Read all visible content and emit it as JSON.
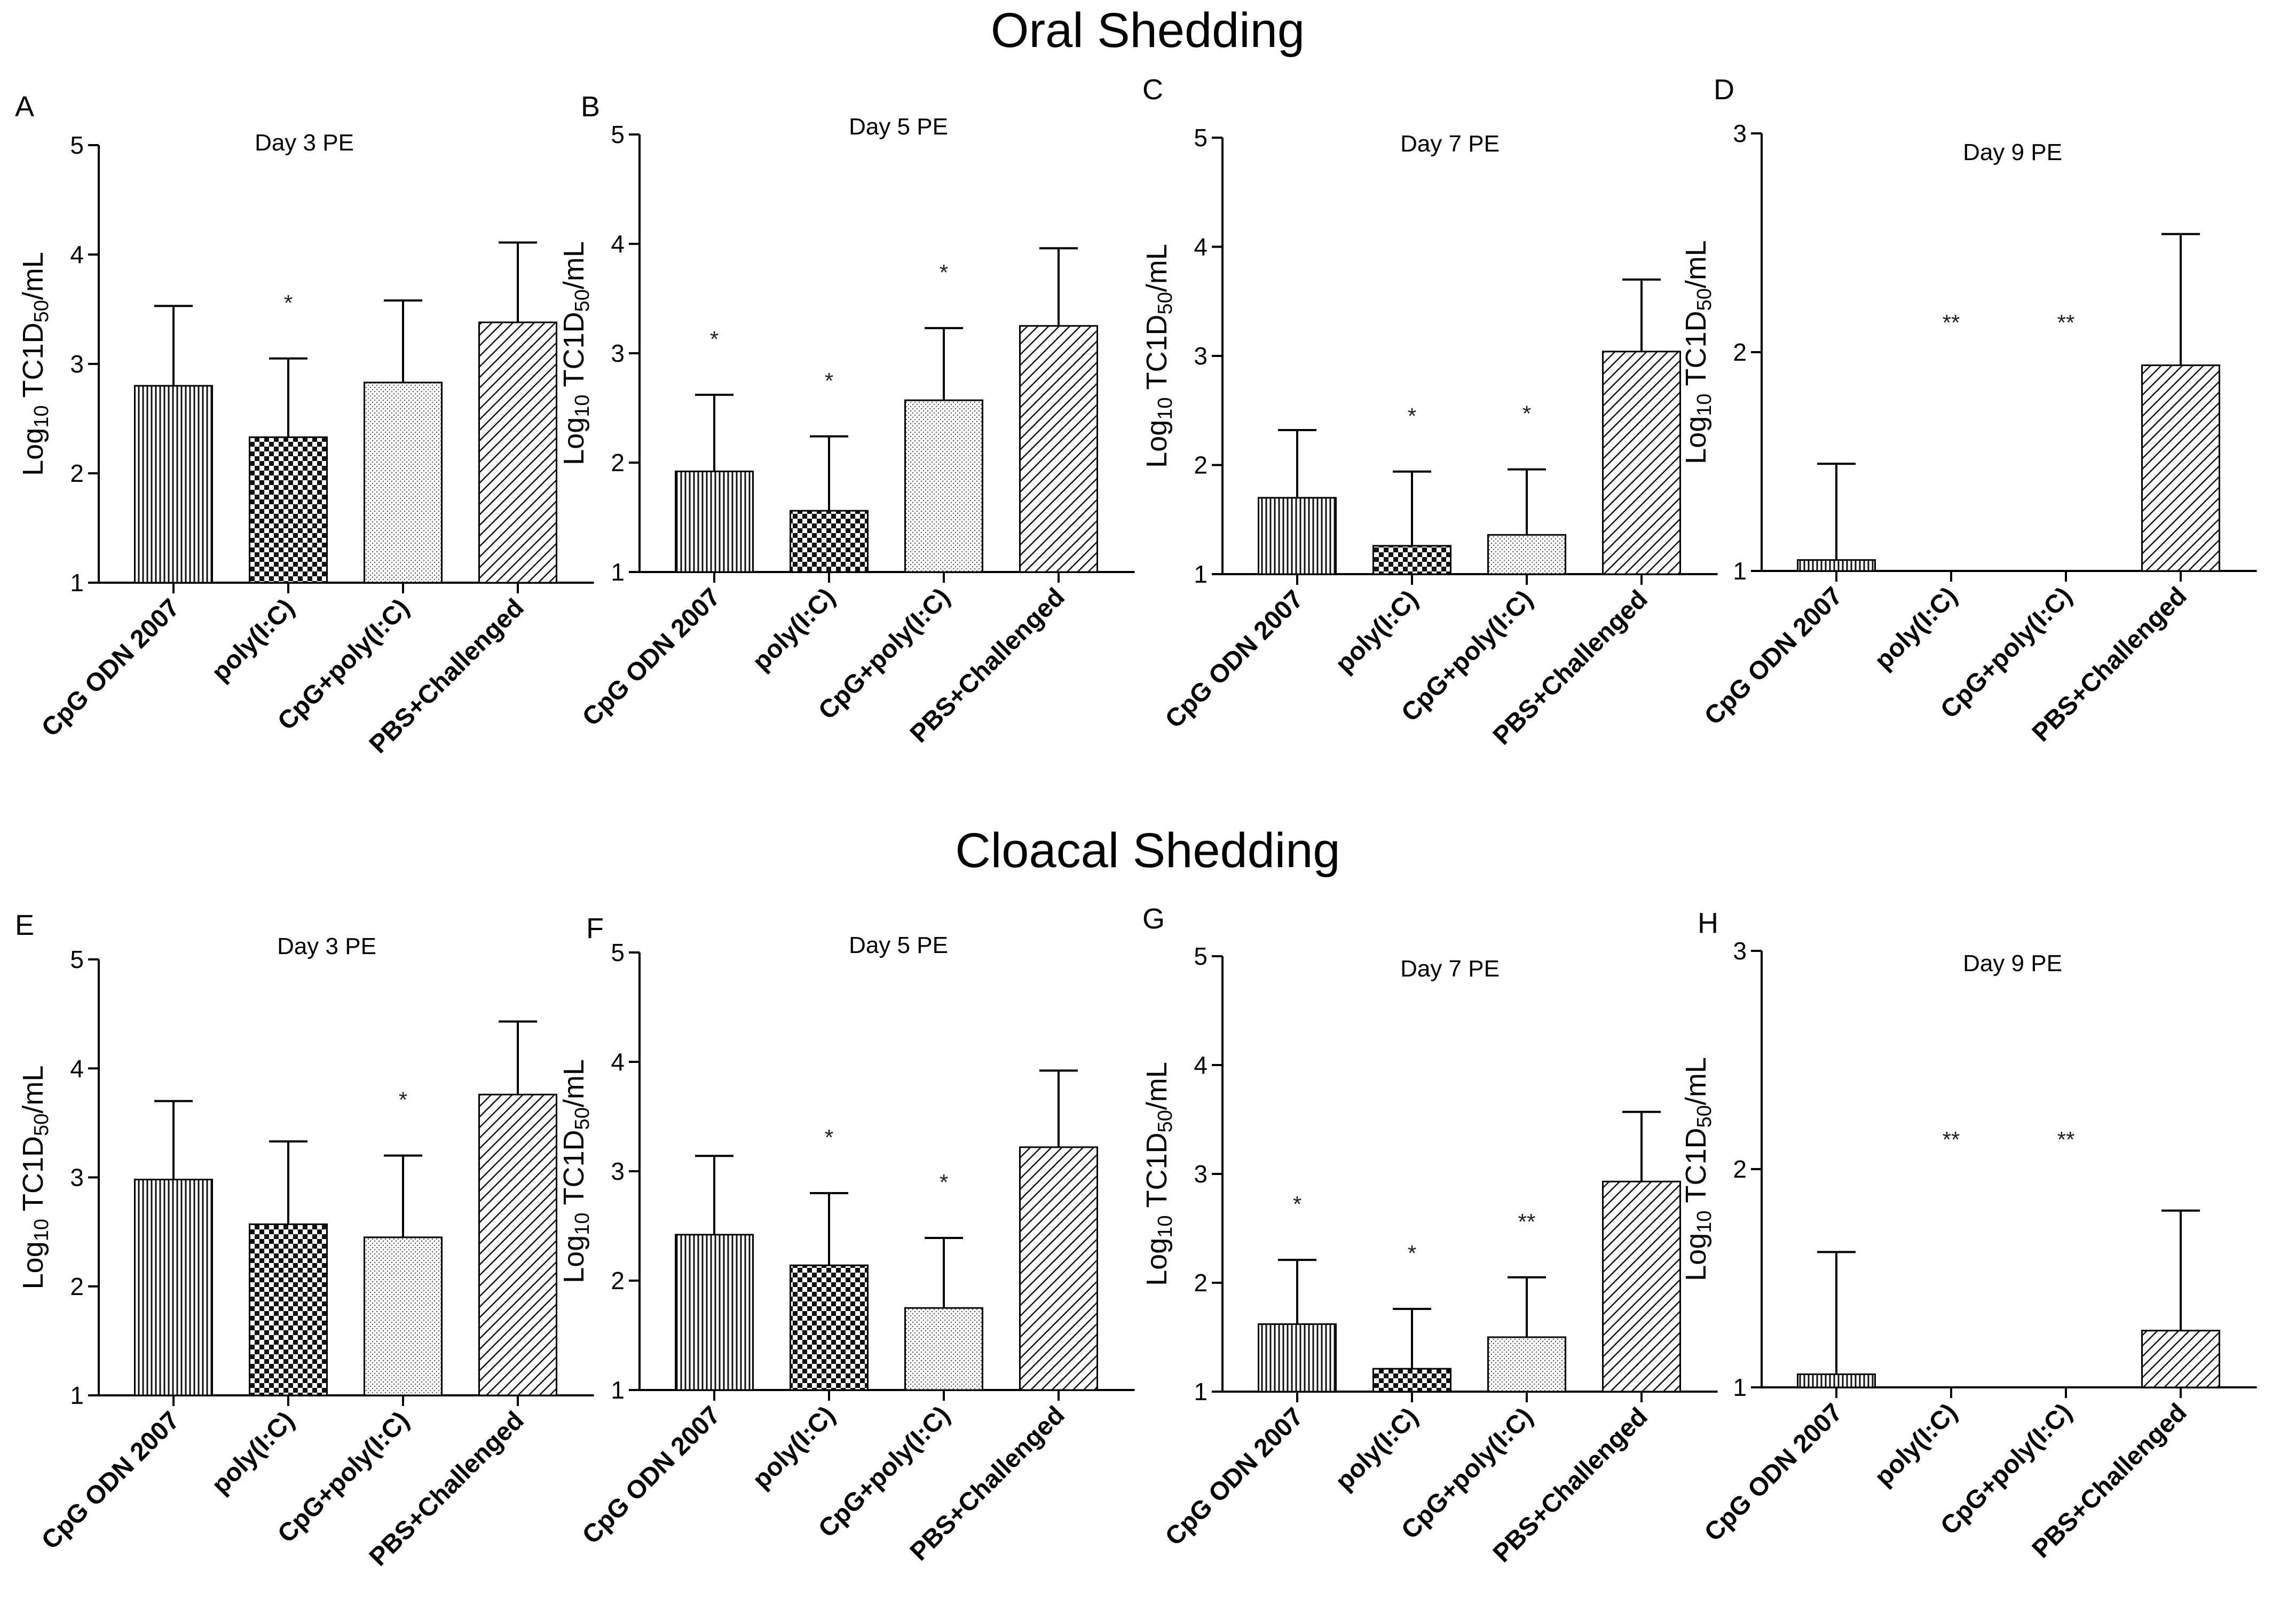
{
  "titles": {
    "oral": "Oral Shedding",
    "cloacal": "Cloacal Shedding"
  },
  "y_axis_label": {
    "prefix": "Log",
    "sub1": "10",
    "mid": " TC1D",
    "sub2": "50",
    "suffix": "/mL"
  },
  "chart_data": [
    {
      "letter": "A",
      "type": "bar",
      "title": "Day 3 PE",
      "ylim": [
        1,
        5
      ],
      "yticks": [
        1,
        2,
        3,
        4,
        5
      ],
      "categories": [
        "CpG ODN 2007",
        "poly(I:C)",
        "CpG+poly(I:C)",
        "PBS+Challenged"
      ],
      "values": [
        2.8,
        2.33,
        2.83,
        3.38
      ],
      "errors": [
        0.73,
        0.72,
        0.75,
        0.73
      ],
      "significance": [
        "",
        "*",
        "",
        ""
      ]
    },
    {
      "letter": "B",
      "type": "bar",
      "title": "Day 5 PE",
      "ylim": [
        1,
        5
      ],
      "yticks": [
        1,
        2,
        3,
        4,
        5
      ],
      "categories": [
        "CpG ODN 2007",
        "poly(I:C)",
        "CpG+poly(I:C)",
        "PBS+Challenged"
      ],
      "values": [
        1.92,
        1.56,
        2.57,
        3.25
      ],
      "errors": [
        0.7,
        0.68,
        0.66,
        0.71
      ],
      "significance": [
        "*",
        "*",
        "*",
        ""
      ]
    },
    {
      "letter": "C",
      "type": "bar",
      "title": "Day 7 PE",
      "ylim": [
        1,
        5
      ],
      "yticks": [
        1,
        2,
        3,
        4,
        5
      ],
      "categories": [
        "CpG ODN 2007",
        "poly(I:C)",
        "CpG+poly(I:C)",
        "PBS+Challenged"
      ],
      "values": [
        1.7,
        1.26,
        1.36,
        3.04
      ],
      "errors": [
        0.62,
        0.68,
        0.6,
        0.66
      ],
      "significance": [
        "",
        "*",
        "*",
        ""
      ]
    },
    {
      "letter": "D",
      "type": "bar",
      "title": "Day 9 PE",
      "ylim": [
        1,
        3
      ],
      "yticks": [
        1,
        2,
        3
      ],
      "categories": [
        "CpG ODN 2007",
        "poly(I:C)",
        "CpG+poly(I:C)",
        "PBS+Challenged"
      ],
      "values": [
        1.05,
        1.0,
        1.0,
        1.94
      ],
      "errors": [
        0.44,
        0,
        0,
        0.6
      ],
      "significance": [
        "",
        "**",
        "**",
        ""
      ]
    },
    {
      "letter": "E",
      "type": "bar",
      "title": "Day 3 PE",
      "ylim": [
        1,
        5
      ],
      "yticks": [
        1,
        2,
        3,
        4,
        5
      ],
      "categories": [
        "CpG ODN 2007",
        "poly(I:C)",
        "CpG+poly(I:C)",
        "PBS+Challenged"
      ],
      "values": [
        2.98,
        2.57,
        2.45,
        3.76
      ],
      "errors": [
        0.72,
        0.76,
        0.75,
        0.67
      ],
      "significance": [
        "",
        "",
        "*",
        ""
      ]
    },
    {
      "letter": "F",
      "type": "bar",
      "title": "Day 5 PE",
      "ylim": [
        1,
        5
      ],
      "yticks": [
        1,
        2,
        3,
        4,
        5
      ],
      "categories": [
        "CpG ODN 2007",
        "poly(I:C)",
        "CpG+poly(I:C)",
        "PBS+Challenged"
      ],
      "values": [
        2.42,
        2.14,
        1.75,
        3.22
      ],
      "errors": [
        0.72,
        0.66,
        0.64,
        0.7
      ],
      "significance": [
        "",
        "*",
        "*",
        ""
      ]
    },
    {
      "letter": "G",
      "type": "bar",
      "title": "Day 7 PE",
      "ylim": [
        1,
        5
      ],
      "yticks": [
        1,
        2,
        3,
        4,
        5
      ],
      "categories": [
        "CpG ODN 2007",
        "poly(I:C)",
        "CpG+poly(I:C)",
        "PBS+Challenged"
      ],
      "values": [
        1.62,
        1.21,
        1.5,
        2.93
      ],
      "errors": [
        0.59,
        0.55,
        0.55,
        0.64
      ],
      "significance": [
        "*",
        "*",
        "**",
        ""
      ]
    },
    {
      "letter": "H",
      "type": "bar",
      "title": "Day 9 PE",
      "ylim": [
        1,
        3
      ],
      "yticks": [
        1,
        2,
        3
      ],
      "categories": [
        "CpG ODN 2007",
        "poly(I:C)",
        "CpG+poly(I:C)",
        "PBS+Challenged"
      ],
      "values": [
        1.06,
        1.0,
        1.0,
        1.26
      ],
      "errors": [
        0.56,
        0,
        0,
        0.55
      ],
      "significance": [
        "",
        "**",
        "**",
        ""
      ]
    }
  ]
}
